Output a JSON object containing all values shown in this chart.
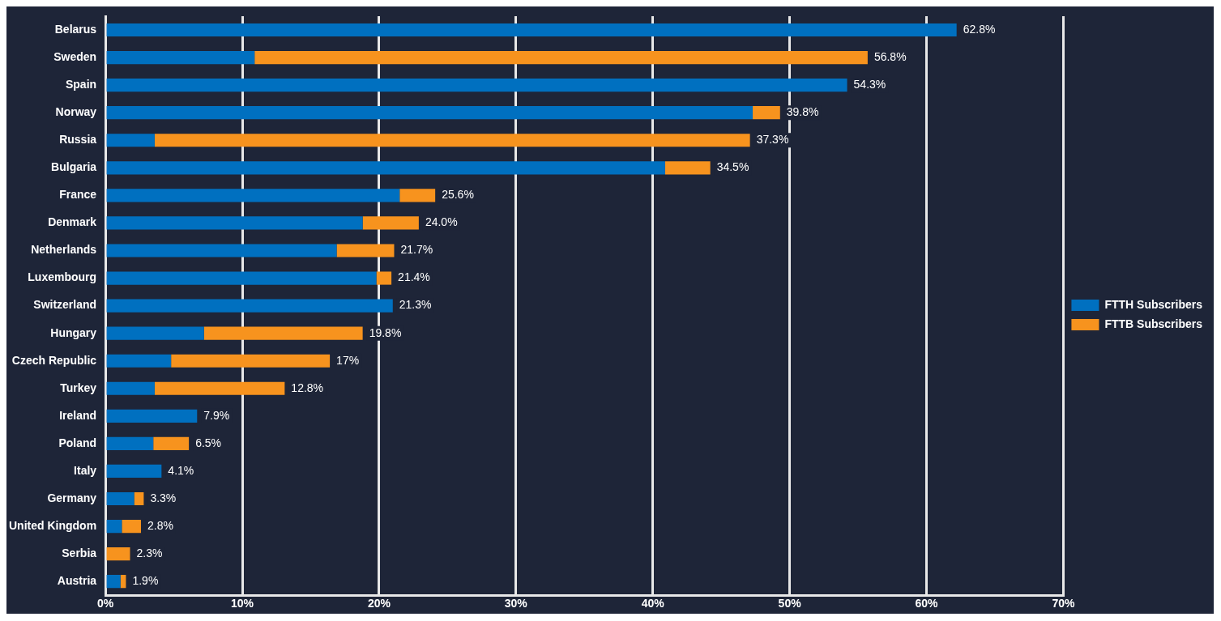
{
  "chart_data": {
    "type": "bar",
    "orientation": "horizontal",
    "stacked": true,
    "categories": [
      "Belarus",
      "Sweden",
      "Spain",
      "Norway",
      "Russia",
      "Bulgaria",
      "France",
      "Denmark",
      "Netherlands",
      "Luxembourg",
      "Switzerland",
      "Hungary",
      "Czech Republic",
      "Turkey",
      "Ireland",
      "Poland",
      "Italy",
      "Germany",
      "United Kingdom",
      "Serbia",
      "Austria"
    ],
    "series": [
      {
        "name": "FTTH Subscribers",
        "color": "#0070c0",
        "values": [
          62.2,
          10.9,
          54.2,
          47.3,
          3.6,
          40.9,
          21.5,
          18.8,
          16.9,
          19.8,
          21.0,
          7.2,
          4.8,
          3.6,
          6.7,
          3.5,
          4.1,
          2.1,
          1.2,
          0,
          1.1
        ]
      },
      {
        "name": "FTTB Subscribers",
        "color": "#f7931e",
        "values": [
          0,
          44.8,
          0,
          2.0,
          43.5,
          3.3,
          2.6,
          4.1,
          4.2,
          1.1,
          0,
          11.6,
          11.6,
          9.5,
          0,
          2.6,
          0,
          0.7,
          1.4,
          1.8,
          0.4
        ]
      }
    ],
    "annotations": [
      {
        "text": "62.8%",
        "x": 62.2,
        "y": "Belarus"
      },
      {
        "text": "56.8%",
        "x": 55.7,
        "y": "Sweden"
      },
      {
        "text": "54.3%",
        "x": 54.2,
        "y": "Spain"
      },
      {
        "text": "39.8%",
        "x": 49.3,
        "y": "Norway"
      },
      {
        "text": "37.3%",
        "x": 47.1,
        "y": "Russia"
      },
      {
        "text": "34.5%",
        "x": 44.2,
        "y": "Bulgaria"
      },
      {
        "text": "25.6%",
        "x": 24.1,
        "y": "France"
      },
      {
        "text": "24.0%",
        "x": 22.9,
        "y": "Denmark"
      },
      {
        "text": "21.7%",
        "x": 21.1,
        "y": "Netherlands"
      },
      {
        "text": "21.4%",
        "x": 20.9,
        "y": "Luxembourg"
      },
      {
        "text": "21.3%",
        "x": 21.0,
        "y": "Switzerland"
      },
      {
        "text": "19.8%",
        "x": 18.8,
        "y": "Hungary"
      },
      {
        "text": "17%",
        "x": 16.4,
        "y": "Czech Republic"
      },
      {
        "text": "12.8%",
        "x": 13.1,
        "y": "Turkey"
      },
      {
        "text": "7.9%",
        "x": 6.7,
        "y": "Ireland"
      },
      {
        "text": "6.5%",
        "x": 6.1,
        "y": "Poland"
      },
      {
        "text": "4.1%",
        "x": 4.1,
        "y": "Italy"
      },
      {
        "text": "3.3%",
        "x": 2.8,
        "y": "Germany"
      },
      {
        "text": "2.8%",
        "x": 2.6,
        "y": "United Kingdom"
      },
      {
        "text": "2.3%",
        "x": 1.8,
        "y": "Serbia"
      },
      {
        "text": "1.9%",
        "x": 1.5,
        "y": "Austria"
      }
    ],
    "xlim": [
      0,
      70
    ],
    "xticks": [
      {
        "value": 0,
        "label": "0%"
      },
      {
        "value": 10,
        "label": "10%"
      },
      {
        "value": 20,
        "label": "20%"
      },
      {
        "value": 30,
        "label": "30%"
      },
      {
        "value": 40,
        "label": "40%"
      },
      {
        "value": 50,
        "label": "50%"
      },
      {
        "value": 60,
        "label": "60%"
      },
      {
        "value": 70,
        "label": "70%"
      }
    ],
    "grid": "x",
    "legend": "right"
  }
}
